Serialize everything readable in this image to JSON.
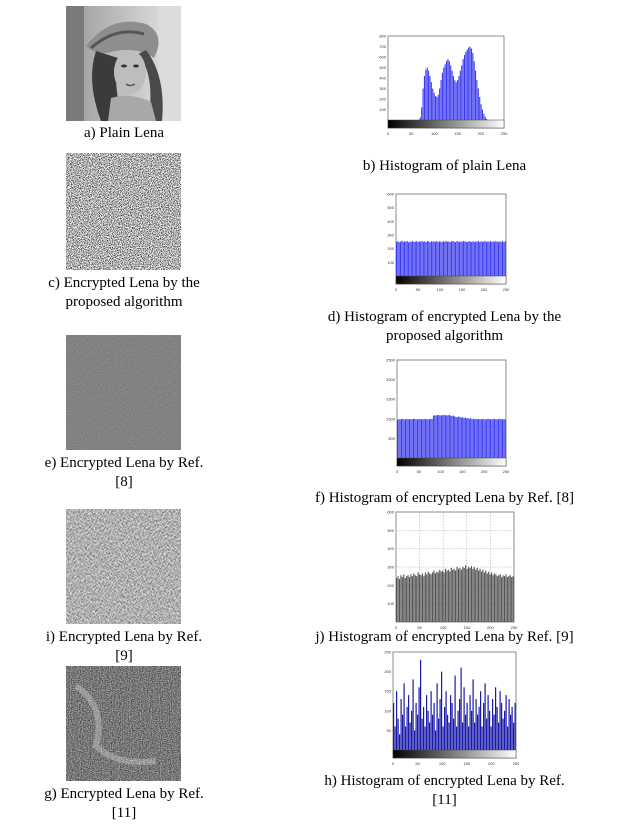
{
  "figure": {
    "panels": [
      {
        "id": "a",
        "caption": [
          "a) Plain Lena"
        ],
        "kind": "image",
        "content": "plain-lena-photo"
      },
      {
        "id": "b",
        "caption": [
          "b) Histogram of plain Lena"
        ],
        "kind": "histogram"
      },
      {
        "id": "c",
        "caption": [
          "c) Encrypted Lena by the",
          "proposed algorithm"
        ],
        "kind": "image",
        "content": "noise"
      },
      {
        "id": "d",
        "caption": [
          "d) Histogram of encrypted Lena by the",
          "proposed algorithm"
        ],
        "kind": "histogram"
      },
      {
        "id": "e",
        "caption": [
          "e) Encrypted Lena by Ref.",
          "[8]"
        ],
        "kind": "image",
        "content": "noise"
      },
      {
        "id": "f",
        "caption": [
          "f) Histogram of encrypted Lena by Ref. [8]"
        ],
        "kind": "histogram"
      },
      {
        "id": "i",
        "caption": [
          "i) Encrypted Lena by Ref.",
          "[9]"
        ],
        "kind": "image",
        "content": "noise"
      },
      {
        "id": "j",
        "caption": [
          "j) Histogram of encrypted Lena by Ref. [9]"
        ],
        "kind": "histogram"
      },
      {
        "id": "g",
        "caption": [
          "g) Encrypted Lena by Ref.",
          "[11]"
        ],
        "kind": "image",
        "content": "noise"
      },
      {
        "id": "h",
        "caption": [
          "h) Histogram of encrypted Lena by Ref.",
          "[11]"
        ],
        "kind": "histogram"
      }
    ]
  },
  "colors": {
    "bar_blue": "#3b3bf0",
    "bar_gray": "#555555",
    "bar_navy": "#1a1aa8"
  },
  "chart_data": [
    {
      "panel": "b",
      "type": "bar",
      "xlim": [
        0,
        250
      ],
      "ylim": [
        0,
        800
      ],
      "xticks": [
        "0",
        "50",
        "100",
        "150",
        "200",
        "250"
      ],
      "yticks": [
        "100",
        "200",
        "300",
        "400",
        "500",
        "600",
        "700",
        "800"
      ],
      "series": [
        {
          "values": [
            0,
            0,
            0,
            0,
            0,
            0,
            0,
            0,
            0,
            0,
            0,
            0,
            0,
            0,
            0,
            0,
            0,
            0,
            0,
            0,
            0,
            0,
            5,
            25,
            120,
            300,
            420,
            480,
            500,
            470,
            420,
            360,
            300,
            260,
            230,
            220,
            240,
            300,
            380,
            450,
            500,
            530,
            560,
            580,
            560,
            520,
            470,
            420,
            380,
            360,
            380,
            420,
            470,
            520,
            580,
            620,
            650,
            670,
            690,
            700,
            680,
            640,
            560,
            470,
            380,
            300,
            220,
            150,
            100,
            60,
            30,
            10,
            0,
            0,
            0,
            0,
            0,
            0,
            0,
            0,
            0,
            0,
            0,
            0
          ]
        }
      ],
      "grid": false,
      "colorbar": true
    },
    {
      "panel": "d",
      "type": "bar",
      "xlim": [
        0,
        250
      ],
      "ylim": [
        0,
        600
      ],
      "xticks": [
        "0",
        "50",
        "100",
        "150",
        "200",
        "250"
      ],
      "yticks": [
        "100",
        "200",
        "300",
        "400",
        "500",
        "600"
      ],
      "series": [
        {
          "values": [
            250,
            255,
            248,
            252,
            258,
            249,
            254,
            251,
            256,
            247,
            253,
            250,
            257,
            249,
            252,
            255,
            248,
            254,
            251,
            256,
            250,
            253,
            249,
            257,
            252,
            248,
            255,
            251,
            254,
            250,
            256,
            249,
            253,
            252,
            248,
            255,
            251,
            257,
            250,
            254,
            249,
            253,
            256,
            251,
            248,
            255,
            252,
            250,
            254,
            249,
            257,
            253,
            251,
            248,
            256,
            252,
            250,
            255,
            249,
            253,
            251,
            257,
            248,
            254,
            250,
            252,
            256,
            249,
            253,
            251,
            255,
            248,
            254,
            250,
            257,
            252,
            249,
            253,
            251,
            256,
            248,
            254
          ]
        }
      ],
      "grid": false,
      "colorbar": true
    },
    {
      "panel": "f",
      "type": "bar",
      "xlim": [
        0,
        250
      ],
      "ylim": [
        0,
        2500
      ],
      "xticks": [
        "0",
        "50",
        "100",
        "150",
        "200",
        "250"
      ],
      "yticks": [
        "500",
        "1000",
        "1500",
        "2000",
        "2500"
      ],
      "series": [
        {
          "values": [
            980,
            990,
            985,
            1000,
            995,
            990,
            985,
            1000,
            990,
            995,
            985,
            990,
            1000,
            995,
            990,
            985,
            1000,
            990,
            995,
            985,
            1000,
            990,
            995,
            985,
            990,
            1000,
            995,
            1080,
            1090,
            1085,
            1100,
            1095,
            1090,
            1085,
            1100,
            1090,
            1095,
            1085,
            1090,
            1100,
            1080,
            1070,
            1085,
            1060,
            1050,
            1040,
            1060,
            1045,
            1030,
            1040,
            1020,
            1035,
            1010,
            1020,
            1000,
            1015,
            990,
            1005,
            985,
            1000,
            990,
            995,
            985,
            1000,
            990,
            995,
            985,
            990,
            1000,
            995,
            990,
            985,
            1000,
            990,
            995,
            985,
            990,
            1000,
            995,
            990,
            985,
            990
          ]
        }
      ],
      "grid": false,
      "colorbar": true
    },
    {
      "panel": "j",
      "type": "bar",
      "xlim": [
        0,
        250
      ],
      "ylim": [
        0,
        600
      ],
      "xticks": [
        "0",
        "50",
        "100",
        "150",
        "200",
        "250"
      ],
      "yticks": [
        "100",
        "200",
        "300",
        "400",
        "500",
        "600"
      ],
      "series": [
        {
          "values": [
            240,
            250,
            235,
            255,
            245,
            260,
            240,
            250,
            255,
            245,
            260,
            250,
            265,
            255,
            250,
            270,
            260,
            255,
            265,
            250,
            270,
            260,
            275,
            265,
            260,
            270,
            280,
            265,
            275,
            270,
            285,
            275,
            280,
            270,
            290,
            280,
            285,
            275,
            295,
            285,
            290,
            280,
            300,
            290,
            295,
            285,
            300,
            295,
            310,
            290,
            300,
            295,
            305,
            290,
            300,
            285,
            295,
            280,
            290,
            275,
            285,
            270,
            280,
            265,
            275,
            260,
            270,
            255,
            265,
            260,
            250,
            255,
            260,
            245,
            255,
            250,
            260,
            245,
            250,
            255,
            245,
            250
          ]
        }
      ],
      "grid": true,
      "colorbar": false
    },
    {
      "panel": "h",
      "type": "bar",
      "xlim": [
        0,
        250
      ],
      "ylim": [
        0,
        250
      ],
      "xticks": [
        "0",
        "50",
        "100",
        "150",
        "200",
        "250"
      ],
      "yticks": [
        "50",
        "100",
        "150",
        "200",
        "250"
      ],
      "series": [
        {
          "values": [
            120,
            60,
            150,
            80,
            40,
            130,
            90,
            170,
            60,
            110,
            140,
            70,
            100,
            180,
            50,
            120,
            90,
            160,
            230,
            80,
            110,
            60,
            140,
            100,
            70,
            150,
            90,
            120,
            50,
            170,
            80,
            130,
            200,
            60,
            110,
            150,
            90,
            70,
            140,
            120,
            80,
            190,
            60,
            100,
            130,
            210,
            70,
            160,
            90,
            120,
            60,
            140,
            100,
            180,
            70,
            130,
            90,
            110,
            150,
            60,
            120,
            170,
            80,
            140,
            100,
            60,
            130,
            90,
            160,
            110,
            70,
            150,
            120,
            80,
            100,
            140,
            60,
            130,
            90,
            110,
            70,
            120
          ]
        }
      ],
      "grid": false,
      "colorbar": true
    }
  ]
}
